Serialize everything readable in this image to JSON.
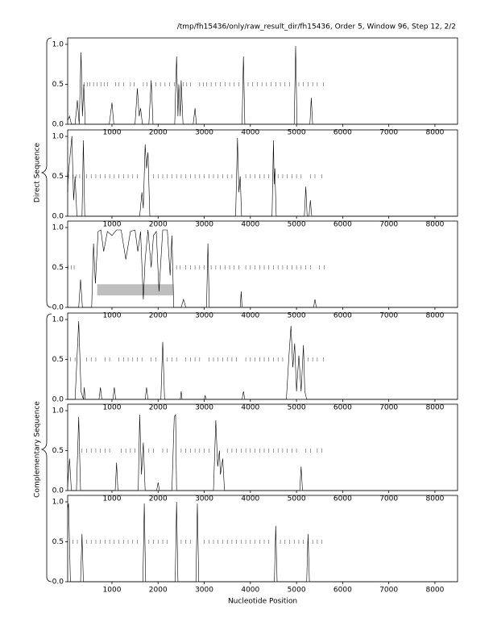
{
  "header": "/tmp/fh15436/only/raw_result_dir/fh15436, Order 5, Window 96, Step 12, 2/2",
  "group_labels": [
    "Direct Sequence",
    "Complementary Sequence"
  ],
  "chart_data": [
    {
      "type": "line",
      "xlim": [
        40,
        8490
      ],
      "ylim": [
        0,
        1
      ],
      "xticks": [
        1000,
        2000,
        3000,
        4000,
        5000,
        6000,
        7000,
        8000
      ],
      "yticks": [
        {
          "value": 0,
          "label": "0.0"
        },
        0.5,
        {
          "value": 1,
          "label": "1.0"
        }
      ],
      "series": [
        {
          "color": "#000000",
          "x": [
            40,
            80,
            120,
            200,
            250,
            290,
            330,
            360,
            390,
            420,
            940,
            1000,
            1040,
            1500,
            1550,
            1590,
            1620,
            1660,
            1800,
            1850,
            1890,
            2360,
            2400,
            2430,
            2450,
            2480,
            2500,
            2540,
            2760,
            2800,
            2830,
            3820,
            3850,
            3880,
            4950,
            4980,
            5010,
            5290,
            5320,
            5350,
            8490
          ],
          "values": [
            0.05,
            0.1,
            0,
            0,
            0.3,
            0,
            0.9,
            0.1,
            0.5,
            0,
            0,
            0.27,
            0,
            0,
            0.45,
            0.1,
            0.2,
            0,
            0,
            0.55,
            0,
            0,
            0.85,
            0.1,
            0.5,
            0.1,
            0.55,
            0,
            0,
            0.2,
            0,
            0,
            0.85,
            0,
            0,
            0.98,
            0,
            0,
            0.33,
            0,
            0
          ]
        }
      ],
      "stop_marks": {
        "y": 0.5,
        "x": [
          400,
          470,
          520,
          600,
          680,
          760,
          830,
          900,
          1080,
          1150,
          1250,
          1400,
          1480,
          1680,
          1760,
          1950,
          2050,
          2150,
          2250,
          2350,
          2550,
          2620,
          2700,
          2900,
          2980,
          3050,
          3150,
          3250,
          3350,
          3450,
          3550,
          3650,
          3750,
          3950,
          4050,
          4150,
          4250,
          4350,
          4450,
          4550,
          4650,
          4750,
          4850,
          5050,
          5150,
          5250,
          5350,
          5450,
          5580
        ]
      }
    },
    {
      "type": "line",
      "xlim": [
        40,
        8490
      ],
      "ylim": [
        0,
        1
      ],
      "xticks": [
        1000,
        2000,
        3000,
        4000,
        5000,
        6000,
        7000,
        8000
      ],
      "yticks": [
        {
          "value": 0,
          "label": "0.0"
        },
        0.5,
        {
          "value": 1,
          "label": "1.0"
        }
      ],
      "series": [
        {
          "color": "#000000",
          "x": [
            40,
            50,
            130,
            170,
            200,
            240,
            350,
            380,
            410,
            1600,
            1650,
            1680,
            1720,
            1750,
            1780,
            1820,
            3680,
            3720,
            3750,
            3780,
            3810,
            4470,
            4500,
            4515,
            4530,
            4560,
            5170,
            5200,
            5230,
            5270,
            5300,
            5330,
            8490
          ],
          "values": [
            0.3,
            0.5,
            1.0,
            0.2,
            0.5,
            0,
            0,
            0.95,
            0,
            0,
            0.3,
            0.1,
            0.9,
            0.6,
            0.8,
            0,
            0,
            0.98,
            0.3,
            0.5,
            0,
            0,
            0.95,
            0.4,
            0.6,
            0,
            0,
            0.37,
            0,
            0,
            0.2,
            0,
            0
          ]
        }
      ],
      "stop_marks": {
        "y": 0.5,
        "x": [
          60,
          160,
          230,
          300,
          450,
          550,
          650,
          750,
          850,
          950,
          1050,
          1150,
          1250,
          1350,
          1450,
          1550,
          1900,
          2000,
          2100,
          2200,
          2300,
          2400,
          2500,
          2600,
          2700,
          2800,
          2900,
          3000,
          3100,
          3200,
          3300,
          3400,
          3500,
          3600,
          3900,
          4000,
          4100,
          4200,
          4300,
          4400,
          4600,
          4700,
          4800,
          4900,
          5000,
          5100,
          5300,
          5400,
          5550
        ]
      }
    },
    {
      "type": "line",
      "xlim": [
        40,
        8490
      ],
      "ylim": [
        0,
        1
      ],
      "xticks": [
        1000,
        2000,
        3000,
        4000,
        5000,
        6000,
        7000,
        8000
      ],
      "yticks": [
        {
          "value": 0,
          "label": "0.0"
        },
        0.5,
        {
          "value": 1,
          "label": "1.0"
        }
      ],
      "series": [
        {
          "color": "#000000",
          "x": [
            40,
            280,
            320,
            360,
            560,
            600,
            640,
            700,
            760,
            820,
            900,
            1000,
            1100,
            1200,
            1300,
            1400,
            1500,
            1560,
            1620,
            1680,
            1720,
            1780,
            1850,
            1900,
            1960,
            2020,
            2100,
            2150,
            2200,
            2260,
            2300,
            2340,
            2500,
            2550,
            2600,
            3050,
            3080,
            3110,
            3780,
            3800,
            3820,
            5370,
            5400,
            5430,
            8490
          ],
          "values": [
            0,
            0,
            0.35,
            0,
            0,
            0.8,
            0.3,
            0.95,
            0.97,
            0.7,
            0.95,
            0.9,
            0.97,
            0.97,
            0.6,
            0.95,
            0.97,
            0.7,
            0.95,
            0.1,
            0.6,
            0.97,
            0.5,
            0.9,
            0.95,
            0.2,
            0.97,
            0.97,
            0.97,
            0.4,
            0.9,
            0,
            0,
            0.1,
            0,
            0,
            0.8,
            0,
            0,
            0.2,
            0,
            0,
            0.1,
            0,
            0
          ]
        }
      ],
      "stop_marks": {
        "y": 0.5,
        "x": [
          50,
          120,
          180,
          2400,
          2480,
          2600,
          2700,
          2800,
          2900,
          3000,
          3150,
          3250,
          3350,
          3450,
          3550,
          3650,
          3750,
          3900,
          4000,
          4100,
          4200,
          4300,
          4400,
          4500,
          4600,
          4700,
          4800,
          4900,
          5000,
          5100,
          5200,
          5300,
          5500,
          5600
        ]
      },
      "gene_regions": [
        {
          "start": 680,
          "end": 2330,
          "color": "#bebebe"
        }
      ]
    },
    {
      "type": "line",
      "xlim": [
        40,
        8490
      ],
      "ylim": [
        0,
        1
      ],
      "xticks": [
        1000,
        2000,
        3000,
        4000,
        5000,
        6000,
        7000,
        8000
      ],
      "yticks": [
        {
          "value": 0,
          "label": "0.0"
        },
        0.5,
        {
          "value": 1,
          "label": "1.0"
        }
      ],
      "series": [
        {
          "color": "#000000",
          "x": [
            40,
            200,
            280,
            330,
            380,
            400,
            420,
            720,
            750,
            780,
            1020,
            1050,
            1080,
            1720,
            1750,
            1780,
            2060,
            2100,
            2140,
            2480,
            2500,
            2520,
            3000,
            3020,
            3040,
            3820,
            3850,
            3880,
            4780,
            4830,
            4880,
            4920,
            4960,
            5000,
            5050,
            5100,
            5150,
            5180,
            5220,
            8490
          ],
          "values": [
            0,
            0,
            0.98,
            0.1,
            0,
            0.15,
            0,
            0,
            0.15,
            0,
            0,
            0.15,
            0,
            0,
            0.15,
            0,
            0,
            0.72,
            0,
            0,
            0.1,
            0,
            0,
            0.05,
            0,
            0,
            0.1,
            0,
            0,
            0.5,
            0.92,
            0.4,
            0.7,
            0.1,
            0.55,
            0.1,
            0.68,
            0.1,
            0,
            0
          ]
        }
      ],
      "stop_marks": {
        "y": 0.5,
        "x": [
          100,
          200,
          450,
          550,
          650,
          850,
          950,
          1150,
          1250,
          1350,
          1450,
          1550,
          1650,
          1850,
          1950,
          2200,
          2300,
          2400,
          2600,
          2700,
          2800,
          2900,
          3100,
          3200,
          3300,
          3400,
          3500,
          3600,
          3700,
          3900,
          4000,
          4100,
          4200,
          4300,
          4400,
          4500,
          4600,
          4700,
          5250,
          5350,
          5450,
          5580
        ]
      }
    },
    {
      "type": "line",
      "xlim": [
        40,
        8490
      ],
      "ylim": [
        0,
        1
      ],
      "xticks": [
        1000,
        2000,
        3000,
        4000,
        5000,
        6000,
        7000,
        8000
      ],
      "yticks": [
        {
          "value": 0,
          "label": "0.0"
        },
        0.5,
        {
          "value": 1,
          "label": "1.0"
        }
      ],
      "series": [
        {
          "color": "#000000",
          "x": [
            40,
            80,
            120,
            230,
            280,
            320,
            1070,
            1100,
            1130,
            1570,
            1600,
            1640,
            1680,
            1720,
            1970,
            2000,
            2030,
            2300,
            2350,
            2380,
            2400,
            3200,
            3250,
            3290,
            3330,
            3350,
            3400,
            3440,
            5070,
            5100,
            5130,
            8490
          ],
          "values": [
            0.05,
            0.4,
            0,
            0,
            0.92,
            0,
            0,
            0.35,
            0,
            0,
            0.95,
            0.2,
            0.6,
            0,
            0,
            0.1,
            0,
            0,
            0.92,
            0.95,
            0,
            0,
            0.88,
            0.3,
            0.5,
            0.2,
            0.4,
            0,
            0,
            0.3,
            0,
            0
          ]
        }
      ],
      "stop_marks": {
        "y": 0.5,
        "x": [
          350,
          450,
          550,
          650,
          750,
          850,
          950,
          1200,
          1300,
          1400,
          1500,
          1800,
          1900,
          2100,
          2200,
          2500,
          2600,
          2700,
          2800,
          2900,
          3000,
          3100,
          3500,
          3600,
          3700,
          3800,
          3900,
          4000,
          4100,
          4200,
          4300,
          4400,
          4500,
          4600,
          4700,
          4800,
          4900,
          5000,
          5200,
          5300,
          5450,
          5550
        ]
      }
    },
    {
      "type": "line",
      "xlim": [
        40,
        8490
      ],
      "ylim": [
        0,
        1
      ],
      "xticks": [
        1000,
        2000,
        3000,
        4000,
        5000,
        6000,
        7000,
        8000
      ],
      "yticks": [
        {
          "value": 0,
          "label": "0.0"
        },
        0.5,
        {
          "value": 1,
          "label": "1.0"
        }
      ],
      "xlabel": "Nucleotide Position",
      "series": [
        {
          "color": "#000000",
          "x": [
            40,
            60,
            100,
            320,
            350,
            380,
            1670,
            1700,
            1730,
            2370,
            2400,
            2430,
            2820,
            2850,
            2880,
            4520,
            4550,
            4580,
            5220,
            5250,
            5280,
            8490
          ],
          "values": [
            0.9,
            0.98,
            0,
            0,
            0.6,
            0,
            0,
            0.98,
            0,
            0,
            1.0,
            0,
            0,
            0.98,
            0,
            0,
            0.7,
            0,
            0,
            0.6,
            0,
            0
          ]
        }
      ],
      "stop_marks": {
        "y": 0.5,
        "x": [
          150,
          250,
          450,
          550,
          650,
          750,
          850,
          950,
          1050,
          1150,
          1250,
          1350,
          1450,
          1550,
          1800,
          1900,
          2000,
          2100,
          2200,
          2500,
          2600,
          2700,
          3000,
          3100,
          3200,
          3300,
          3400,
          3500,
          3600,
          3700,
          3800,
          3900,
          4000,
          4100,
          4200,
          4300,
          4400,
          4650,
          4750,
          4850,
          4950,
          5050,
          5150,
          5350,
          5450,
          5550
        ]
      }
    }
  ]
}
